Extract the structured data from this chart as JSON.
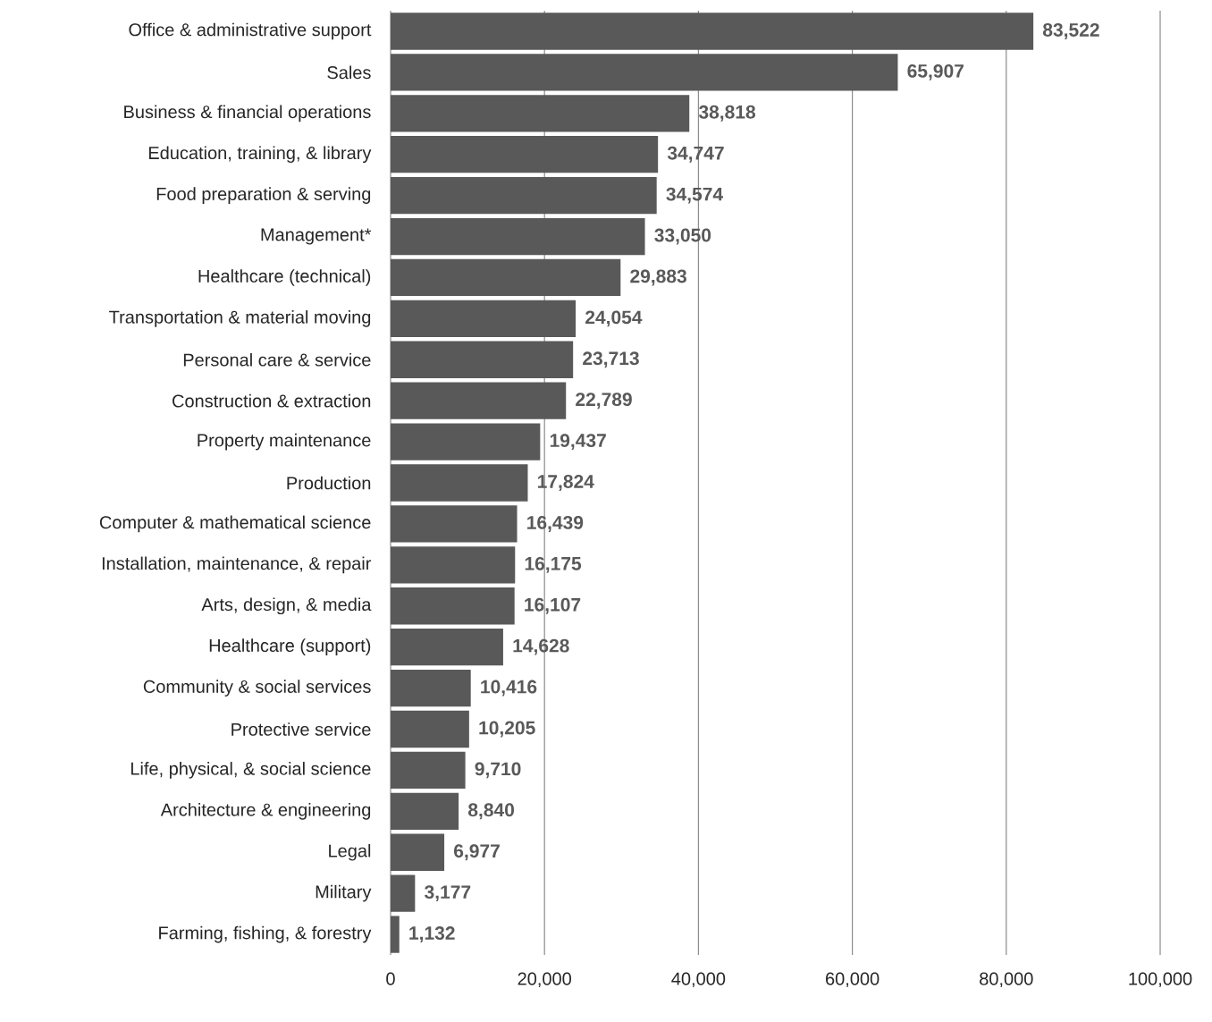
{
  "chart_data": {
    "type": "bar",
    "orientation": "horizontal",
    "categories": [
      "Office & administrative support",
      "Sales",
      "Business & financial operations",
      "Education, training, & library",
      "Food preparation & serving",
      "Management*",
      "Healthcare (technical)",
      "Transportation & material moving",
      "Personal care & service",
      "Construction & extraction",
      "Property maintenance",
      "Production",
      "Computer & mathematical science",
      "Installation, maintenance, & repair",
      "Arts, design, & media",
      "Healthcare (support)",
      "Community & social services",
      "Protective service",
      "Life, physical, & social science",
      "Architecture & engineering",
      "Legal",
      "Military",
      "Farming, fishing, & forestry"
    ],
    "values": [
      83522,
      65907,
      38818,
      34747,
      34574,
      33050,
      29883,
      24054,
      23713,
      22789,
      19437,
      17824,
      16439,
      16175,
      16107,
      14628,
      10416,
      10205,
      9710,
      8840,
      6977,
      3177,
      1132
    ],
    "value_labels": [
      "83,522",
      "65,907",
      "38,818",
      "34,747",
      "34,574",
      "33,050",
      "29,883",
      "24,054",
      "23,713",
      "22,789",
      "19,437",
      "17,824",
      "16,439",
      "16,175",
      "16,107",
      "14,628",
      "10,416",
      "10,205",
      "9,710",
      "8,840",
      "6,977",
      "3,177",
      "1,132"
    ],
    "color": "#595959",
    "grid": "x",
    "xlim": [
      0,
      100000
    ],
    "xticks": [
      0,
      {
        "value": 20000,
        "label": "20,000"
      },
      {
        "value": 40000,
        "label": "40,000"
      },
      {
        "value": 60000,
        "label": "60,000"
      },
      {
        "value": 80000,
        "label": "80,000"
      },
      {
        "value": 100000,
        "label": "100,000"
      }
    ]
  }
}
